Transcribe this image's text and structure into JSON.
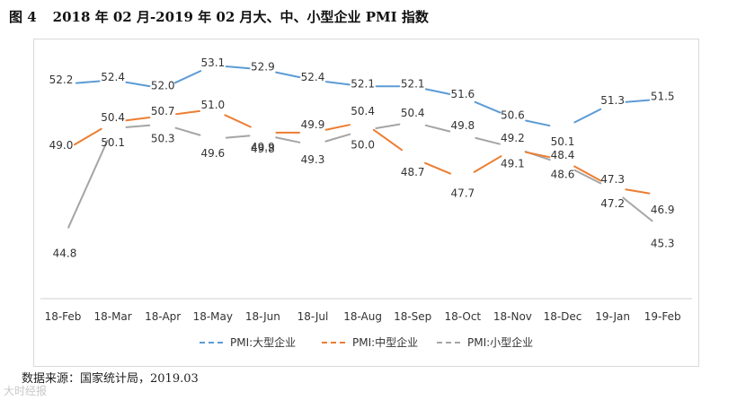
{
  "figure": {
    "number_label": "图 4",
    "title": "2018 年 02 月-2019 年 02 月大、中、小型企业 PMI 指数",
    "source_note": "数据来源：国家统计局，2019.03",
    "watermark": "大时经报"
  },
  "chart_data": {
    "type": "line",
    "title": "2018 年 02 月-2019 年 02 月大、中、小型企业 PMI 指数",
    "xlabel": "",
    "ylabel": "",
    "categories": [
      "18-Feb",
      "18-Mar",
      "18-Apr",
      "18-May",
      "18-Jun",
      "18-Jul",
      "18-Aug",
      "18-Sep",
      "18-Oct",
      "18-Nov",
      "18-Dec",
      "19-Jan",
      "19-Feb"
    ],
    "ylim": [
      42,
      54.5
    ],
    "grid": false,
    "legend_position": "bottom",
    "series": [
      {
        "name": "PMI:大型企业",
        "color": "#5b9bd5",
        "values": [
          52.2,
          52.4,
          52.0,
          53.1,
          52.9,
          52.4,
          52.1,
          52.1,
          51.6,
          50.6,
          50.1,
          51.3,
          51.5
        ],
        "labels": [
          "52.2",
          "52.4",
          "52.0",
          "53.1",
          "52.9",
          "52.4",
          "52.1",
          "52.1",
          "51.6",
          "50.6",
          "50.1",
          "51.3",
          "51.5"
        ]
      },
      {
        "name": "PMI:中型企业",
        "color": "#ed7d31",
        "values": [
          49.0,
          50.4,
          50.7,
          51.0,
          49.9,
          49.9,
          50.4,
          48.7,
          47.7,
          49.1,
          48.6,
          47.3,
          46.9
        ],
        "labels": [
          "49.0",
          "50.4",
          "50.7",
          "51.0",
          "49.9",
          "49.9",
          "50.4",
          "48.7",
          "47.7",
          "49.1",
          "48.6",
          "47.3",
          "46.9"
        ]
      },
      {
        "name": "PMI:小型企业",
        "color": "#a5a5a5",
        "values": [
          44.8,
          50.1,
          50.3,
          49.6,
          49.8,
          49.3,
          50.0,
          50.4,
          49.8,
          49.2,
          48.4,
          47.2,
          45.3
        ],
        "labels": [
          "44.8",
          "50.1",
          "50.3",
          "49.6",
          "49.8",
          "49.3",
          "50.0",
          "50.4",
          "49.8",
          "49.2",
          "48.4",
          "47.2",
          "45.3"
        ]
      }
    ]
  }
}
